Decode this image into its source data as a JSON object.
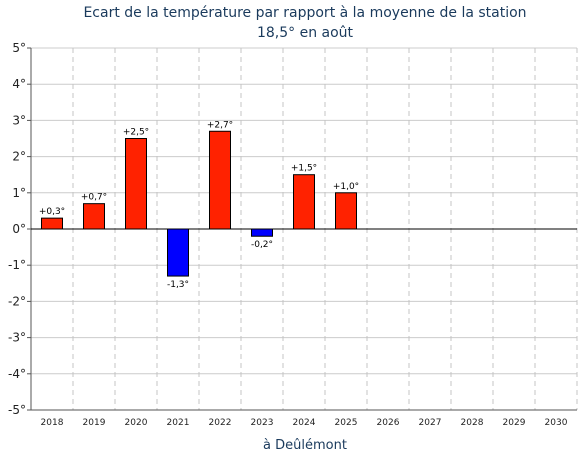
{
  "chart_data": {
    "type": "bar",
    "title": "Ecart de la température par rapport à la moyenne de la station",
    "subtitle": "18,5° en août",
    "xlabel": "à Deûlémont",
    "ylabel": "",
    "ylim": [
      -5,
      5
    ],
    "yticks": [
      {
        "value": 5,
        "label": "5°"
      },
      {
        "value": 4,
        "label": "4°"
      },
      {
        "value": 3,
        "label": "3°"
      },
      {
        "value": 2,
        "label": "2°"
      },
      {
        "value": 1,
        "label": "1°"
      },
      {
        "value": 0,
        "label": "0°"
      },
      {
        "value": -1,
        "label": "-1°"
      },
      {
        "value": -2,
        "label": "-2°"
      },
      {
        "value": -3,
        "label": "-3°"
      },
      {
        "value": -4,
        "label": "-4°"
      },
      {
        "value": -5,
        "label": "-5°"
      }
    ],
    "categories": [
      "2018",
      "2019",
      "2020",
      "2021",
      "2022",
      "2023",
      "2024",
      "2025",
      "2026",
      "2027",
      "2028",
      "2029",
      "2030"
    ],
    "values": [
      0.3,
      0.7,
      2.5,
      -1.3,
      2.7,
      -0.2,
      1.5,
      1.0,
      null,
      null,
      null,
      null,
      null
    ],
    "data_labels": [
      "+0,3°",
      "+0,7°",
      "+2,5°",
      "-1,3°",
      "+2,7°",
      "-0,2°",
      "+1,5°",
      "+1,0°",
      "",
      "",
      "",
      "",
      ""
    ],
    "colors": {
      "positive": "#ff2200",
      "negative": "#0000ff"
    },
    "grid": true,
    "legend": "none"
  }
}
